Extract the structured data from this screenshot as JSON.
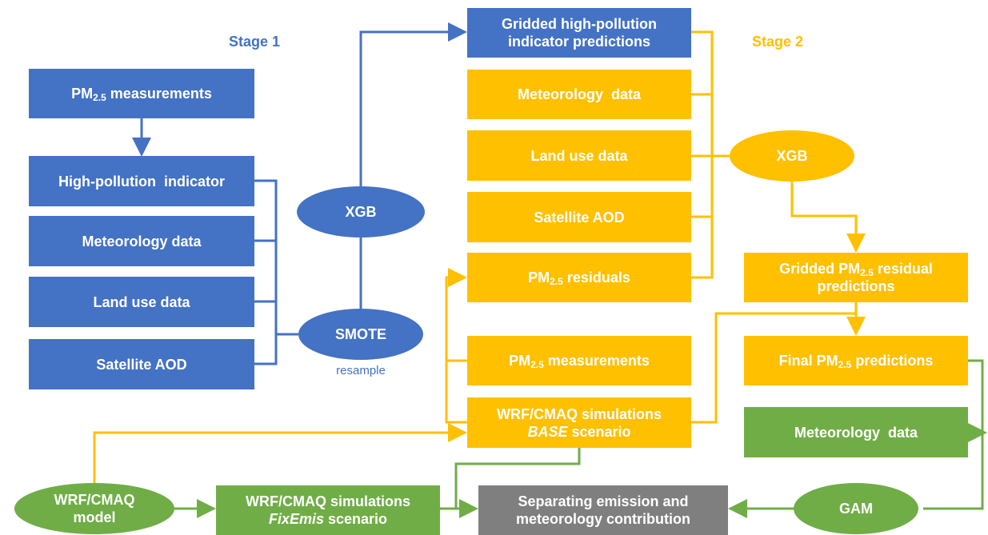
{
  "stage_1": {
    "title": "Stage 1",
    "pm_measurements": [
      "PM",
      "2.5",
      " measurements"
    ],
    "high_pollution_indicator": "High-pollution  indicator",
    "meteorology": "Meteorology data",
    "land_use": "Land use data",
    "satellite_aod": "Satellite AOD",
    "xgb": "XGB",
    "smote": "SMOTE",
    "smote_note": "resample",
    "gridded_predictions": "Gridded high-pollution indicator predictions"
  },
  "stage_2": {
    "title": "Stage 2",
    "meteorology": "Meteorology  data",
    "land_use": "Land use data",
    "satellite_aod": "Satellite AOD",
    "pm_residuals": [
      "PM",
      "2.5",
      " residuals"
    ],
    "pm_measurements": [
      "PM",
      "2.5",
      " measurements"
    ],
    "base_simulations": [
      "WRF/CMAQ simulations",
      "BASE",
      " scenario"
    ],
    "xgb": "XGB",
    "gridded_residuals": [
      "Gridded PM",
      "2.5",
      " residual predictions"
    ],
    "final_predictions": [
      "Final PM",
      "2.5",
      " predictions"
    ]
  },
  "decomposition": {
    "meteorology": "Meteorology  data",
    "wrf_model": "WRF/CMAQ model",
    "fixemis_simulations": [
      "WRF/CMAQ simulations",
      "FixEmis",
      " scenario"
    ],
    "gam": "GAM",
    "separation": "Separating emission and meteorology contribution"
  }
}
